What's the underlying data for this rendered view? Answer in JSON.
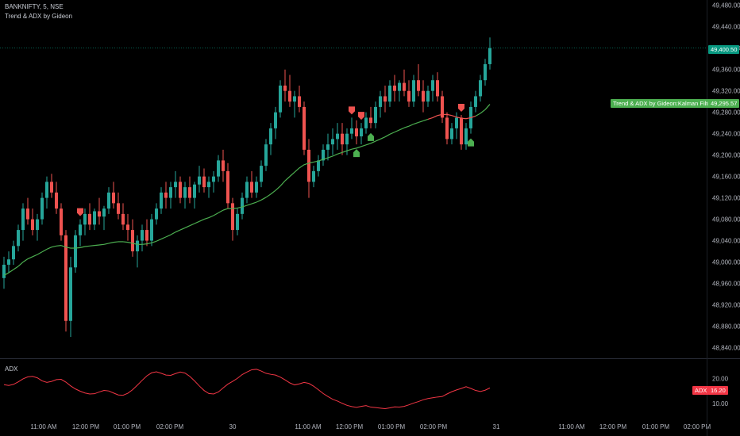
{
  "header": {
    "symbol_line": "BANKNIFTY, 5, NSE",
    "indicator_line": "Trend & ADX by Gideon"
  },
  "adx_pane": {
    "label": "ADX",
    "badge_label": "ADX",
    "badge_value": "16.20"
  },
  "price_axis": {
    "ticks": [
      "49,480.00",
      "49,440.00",
      "49,400.00",
      "49,360.00",
      "49,320.00",
      "49,280.00",
      "49,240.00",
      "49,200.00",
      "49,160.00",
      "49,120.00",
      "49,080.00",
      "49,040.00",
      "49,000.00",
      "48,960.00",
      "48,920.00",
      "48,880.00",
      "48,840.00"
    ],
    "last_price_label": "49,400.50",
    "kalman_label": "Trend & ADX by Gideon:Kalman Filter",
    "kalman_value": "49,295.57"
  },
  "adx_axis": {
    "ticks": [
      "20.00",
      "10.00"
    ]
  },
  "time_axis": {
    "ticks": [
      "11:00 AM",
      "12:00 PM",
      "01:00 PM",
      "02:00 PM",
      "30",
      "11:00 AM",
      "12:00 PM",
      "01:00 PM",
      "02:00 PM",
      "31",
      "11:00 AM",
      "12:00 PM",
      "01:00 PM",
      "02:00 PM"
    ]
  },
  "colors": {
    "up": "#26a69a",
    "down": "#ef5350",
    "kalman_up": "#4caf50",
    "kalman_down": "#ef5350",
    "adx_line": "#f23645",
    "last_price_bg": "#089981",
    "kalman_bg": "#4caf50",
    "adx_badge": "#f23645"
  },
  "chart_data": [
    {
      "type": "candlestick",
      "title": "BANKNIFTY, 5, NSE",
      "ylim": [
        48820,
        49490
      ],
      "candles": [
        [
          48970,
          49010,
          48950,
          48995
        ],
        [
          48995,
          49020,
          48980,
          49005
        ],
        [
          49005,
          49040,
          48995,
          49030
        ],
        [
          49030,
          49070,
          49020,
          49060
        ],
        [
          49060,
          49110,
          49040,
          49100
        ],
        [
          49100,
          49120,
          49070,
          49080
        ],
        [
          49080,
          49100,
          49050,
          49060
        ],
        [
          49060,
          49090,
          49040,
          49080
        ],
        [
          49080,
          49130,
          49070,
          49120
        ],
        [
          49120,
          49160,
          49100,
          49150
        ],
        [
          49150,
          49165,
          49120,
          49130
        ],
        [
          49130,
          49150,
          49090,
          49100
        ],
        [
          49100,
          49110,
          49040,
          49050
        ],
        [
          49050,
          49060,
          48870,
          48890
        ],
        [
          48890,
          49010,
          48860,
          48990
        ],
        [
          48990,
          49060,
          48980,
          49050
        ],
        [
          49050,
          49080,
          49030,
          49070
        ],
        [
          49070,
          49100,
          49050,
          49090
        ],
        [
          49090,
          49110,
          49060,
          49070
        ],
        [
          49070,
          49100,
          49060,
          49095
        ],
        [
          49095,
          49120,
          49070,
          49085
        ],
        [
          49085,
          49105,
          49060,
          49100
        ],
        [
          49100,
          49140,
          49090,
          49130
        ],
        [
          49130,
          49150,
          49100,
          49110
        ],
        [
          49110,
          49130,
          49080,
          49090
        ],
        [
          49090,
          49110,
          49060,
          49070
        ],
        [
          49070,
          49090,
          49040,
          49060
        ],
        [
          49060,
          49080,
          49010,
          49020
        ],
        [
          49020,
          49050,
          48990,
          49040
        ],
        [
          49040,
          49070,
          49020,
          49060
        ],
        [
          49060,
          49080,
          49030,
          49040
        ],
        [
          49040,
          49090,
          49030,
          49080
        ],
        [
          49080,
          49110,
          49070,
          49100
        ],
        [
          49100,
          49140,
          49090,
          49130
        ],
        [
          49130,
          49150,
          49100,
          49120
        ],
        [
          49120,
          49150,
          49100,
          49140
        ],
        [
          49140,
          49170,
          49120,
          49150
        ],
        [
          49150,
          49160,
          49110,
          49120
        ],
        [
          49120,
          49150,
          49100,
          49140
        ],
        [
          49140,
          49160,
          49110,
          49120
        ],
        [
          49120,
          49150,
          49100,
          49145
        ],
        [
          49145,
          49180,
          49130,
          49160
        ],
        [
          49160,
          49175,
          49130,
          49140
        ],
        [
          49140,
          49160,
          49120,
          49150
        ],
        [
          49150,
          49170,
          49130,
          49160
        ],
        [
          49160,
          49200,
          49150,
          49190
        ],
        [
          49190,
          49210,
          49150,
          49170
        ],
        [
          49170,
          49185,
          49100,
          49110
        ],
        [
          49110,
          49120,
          49040,
          49060
        ],
        [
          49060,
          49100,
          49050,
          49090
        ],
        [
          49090,
          49130,
          49080,
          49120
        ],
        [
          49120,
          49160,
          49110,
          49150
        ],
        [
          49150,
          49170,
          49120,
          49130
        ],
        [
          49130,
          49160,
          49120,
          49150
        ],
        [
          49150,
          49190,
          49140,
          49180
        ],
        [
          49180,
          49230,
          49170,
          49220
        ],
        [
          49220,
          49260,
          49200,
          49250
        ],
        [
          49250,
          49290,
          49230,
          49280
        ],
        [
          49280,
          49340,
          49270,
          49330
        ],
        [
          49330,
          49360,
          49300,
          49320
        ],
        [
          49320,
          49350,
          49290,
          49300
        ],
        [
          49300,
          49320,
          49270,
          49310
        ],
        [
          49310,
          49330,
          49280,
          49290
        ],
        [
          49290,
          49300,
          49200,
          49210
        ],
        [
          49210,
          49230,
          49120,
          49150
        ],
        [
          49150,
          49180,
          49140,
          49170
        ],
        [
          49170,
          49200,
          49160,
          49190
        ],
        [
          49190,
          49220,
          49180,
          49210
        ],
        [
          49210,
          49240,
          49190,
          49220
        ],
        [
          49220,
          49250,
          49200,
          49230
        ],
        [
          49230,
          49260,
          49210,
          49240
        ],
        [
          49240,
          49260,
          49200,
          49220
        ],
        [
          49220,
          49250,
          49200,
          49240
        ],
        [
          49240,
          49270,
          49230,
          49250
        ],
        [
          49250,
          49265,
          49220,
          49235
        ],
        [
          49235,
          49260,
          49220,
          49250
        ],
        [
          49250,
          49280,
          49240,
          49270
        ],
        [
          49270,
          49290,
          49250,
          49260
        ],
        [
          49260,
          49300,
          49250,
          49290
        ],
        [
          49290,
          49320,
          49270,
          49310
        ],
        [
          49310,
          49330,
          49280,
          49300
        ],
        [
          49300,
          49340,
          49290,
          49330
        ],
        [
          49330,
          49350,
          49300,
          49320
        ],
        [
          49320,
          49340,
          49300,
          49335
        ],
        [
          49335,
          49360,
          49310,
          49320
        ],
        [
          49320,
          49340,
          49290,
          49300
        ],
        [
          49300,
          49350,
          49290,
          49340
        ],
        [
          49340,
          49370,
          49310,
          49320
        ],
        [
          49320,
          49340,
          49280,
          49300
        ],
        [
          49300,
          49330,
          49290,
          49320
        ],
        [
          49320,
          49350,
          49300,
          49340
        ],
        [
          49340,
          49355,
          49300,
          49310
        ],
        [
          49310,
          49320,
          49260,
          49270
        ],
        [
          49270,
          49280,
          49220,
          49230
        ],
        [
          49230,
          49260,
          49220,
          49250
        ],
        [
          49250,
          49280,
          49230,
          49270
        ],
        [
          49270,
          49275,
          49210,
          49220
        ],
        [
          49220,
          49260,
          49210,
          49250
        ],
        [
          49250,
          49300,
          49240,
          49290
        ],
        [
          49290,
          49320,
          49280,
          49310
        ],
        [
          49310,
          49350,
          49300,
          49340
        ],
        [
          49340,
          49380,
          49330,
          49370
        ],
        [
          49370,
          49420,
          49360,
          49400
        ]
      ]
    },
    {
      "type": "line",
      "title": "Trend & ADX by Gideon:Kalman Filter",
      "ylim": [
        48820,
        49490
      ],
      "values": [
        48975,
        48980,
        48986,
        48992,
        49000,
        49006,
        49010,
        49014,
        49019,
        49024,
        49028,
        49030,
        49031,
        49028,
        49026,
        49026,
        49027,
        49029,
        49030,
        49031,
        49032,
        49033,
        49035,
        49037,
        49038,
        49038,
        49037,
        49035,
        49033,
        49033,
        49034,
        49036,
        49039,
        49043,
        49047,
        49051,
        49056,
        49060,
        49064,
        49068,
        49072,
        49076,
        49080,
        49083,
        49087,
        49092,
        49097,
        49100,
        49100,
        49101,
        49103,
        49106,
        49109,
        49112,
        49116,
        49121,
        49127,
        49134,
        49142,
        49152,
        49160,
        49168,
        49176,
        49182,
        49185,
        49187,
        49189,
        49192,
        49195,
        49198,
        49202,
        49205,
        49208,
        49211,
        49213,
        49216,
        49219,
        49222,
        49226,
        49230,
        49234,
        49239,
        49243,
        49247,
        49251,
        49254,
        49258,
        49261,
        49264,
        49267,
        49270,
        49274,
        49276,
        49276,
        49274,
        49271,
        49269,
        49268,
        49270,
        49273,
        49278,
        49285,
        49295
      ]
    },
    {
      "type": "line",
      "title": "ADX",
      "ylim": [
        5,
        27
      ],
      "values": [
        17.5,
        17.2,
        17.6,
        18.6,
        19.8,
        20.6,
        20.8,
        20.2,
        19.0,
        18.4,
        18.8,
        19.5,
        19.6,
        18.5,
        17.0,
        15.8,
        14.9,
        14.2,
        13.8,
        13.9,
        14.6,
        15.2,
        15.0,
        14.2,
        13.4,
        13.3,
        14.1,
        15.5,
        17.3,
        19.2,
        21.0,
        22.2,
        22.6,
        22.0,
        21.3,
        21.2,
        21.9,
        22.5,
        22.1,
        20.8,
        19.0,
        17.0,
        15.2,
        14.0,
        13.8,
        14.6,
        16.2,
        17.7,
        18.8,
        20.0,
        21.5,
        22.5,
        23.4,
        23.6,
        22.9,
        22.0,
        21.6,
        21.3,
        20.5,
        19.4,
        18.2,
        17.4,
        17.8,
        18.4,
        18.0,
        16.9,
        15.5,
        14.0,
        12.8,
        11.7,
        11.0,
        10.1,
        9.3,
        8.8,
        8.5,
        8.9,
        9.2,
        8.6,
        8.4,
        8.2,
        8.0,
        8.3,
        8.7,
        8.6,
        8.9,
        9.5,
        10.2,
        10.8,
        11.5,
        12.0,
        12.3,
        12.6,
        12.8,
        13.8,
        14.7,
        15.4,
        16.0,
        16.7,
        16.0,
        15.2,
        14.8,
        15.3,
        16.2
      ]
    }
  ],
  "signals": {
    "sell_indices": [
      16,
      73,
      75,
      96
    ],
    "buy_indices": [
      74,
      77,
      98
    ]
  }
}
